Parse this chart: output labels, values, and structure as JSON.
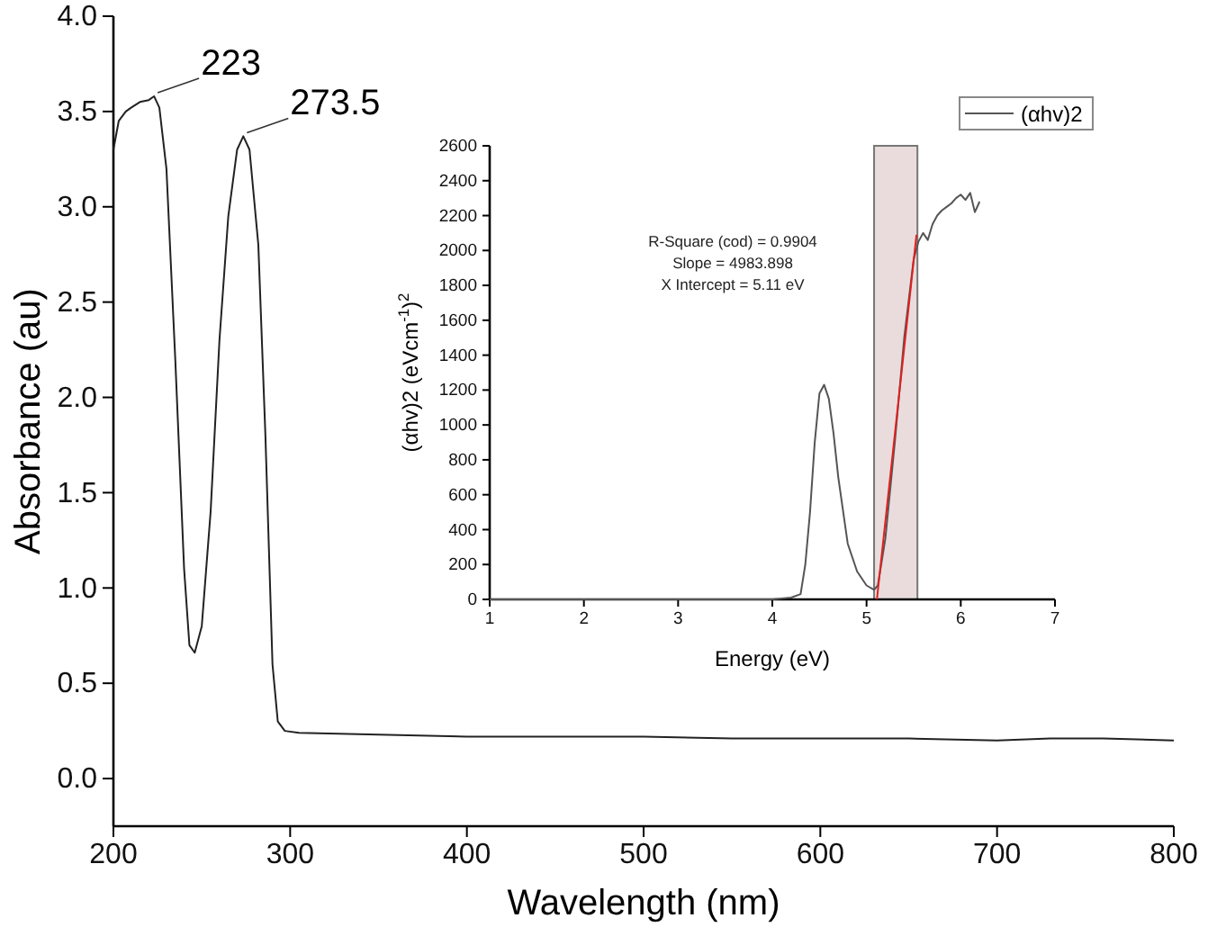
{
  "chart_data": [
    {
      "type": "line",
      "xlabel": "Wavelength (nm)",
      "ylabel": "Absorbance (au)",
      "xlim": [
        200,
        800
      ],
      "ylim": [
        -0.25,
        4.0
      ],
      "xticks": [
        200,
        300,
        400,
        500,
        600,
        700,
        800
      ],
      "yticks": [
        {
          "value": 0,
          "label": "0.0"
        },
        0.5,
        {
          "value": 1,
          "label": "1.0"
        },
        1.5,
        {
          "value": 2,
          "label": "2.0"
        },
        2.5,
        {
          "value": 3,
          "label": "3.0"
        },
        3.5,
        {
          "value": 4,
          "label": "4.0"
        }
      ],
      "grid": false,
      "legend": false,
      "series": [
        {
          "color": "#222222",
          "x": [
            200,
            203,
            207,
            210,
            215,
            220,
            223,
            226,
            230,
            235,
            240,
            243,
            246,
            250,
            255,
            260,
            265,
            270,
            273.5,
            277,
            282,
            286,
            290,
            293,
            297,
            305,
            350,
            400,
            500,
            550,
            600,
            650,
            700,
            730,
            760,
            800
          ],
          "values": [
            3.3,
            3.45,
            3.5,
            3.52,
            3.55,
            3.56,
            3.58,
            3.52,
            3.2,
            2.2,
            1.1,
            0.7,
            0.66,
            0.8,
            1.4,
            2.3,
            2.95,
            3.3,
            3.37,
            3.3,
            2.8,
            1.8,
            0.6,
            0.3,
            0.25,
            0.24,
            0.23,
            0.22,
            0.22,
            0.21,
            0.21,
            0.21,
            0.2,
            0.21,
            0.21,
            0.2
          ]
        }
      ],
      "annotations": [
        {
          "text": "223",
          "x": 223,
          "y": 3.58
        },
        {
          "text": "273.5",
          "x": 273.5,
          "y": 3.37
        }
      ]
    },
    {
      "type": "line",
      "xlabel": "Energy (eV)",
      "ylabel": "(αhv)2 (eVcm$^{-1}$)$^{2}$",
      "xlim": [
        1,
        7
      ],
      "ylim": [
        0,
        2600
      ],
      "xticks": [
        1,
        2,
        3,
        4,
        5,
        6,
        7
      ],
      "yticks": [
        0,
        200,
        400,
        600,
        800,
        1000,
        1200,
        1400,
        1600,
        1800,
        2000,
        2200,
        2400,
        2600
      ],
      "grid": false,
      "legend": "top right",
      "series": [
        {
          "name": "(αhv)2",
          "color": "#555555",
          "x": [
            1,
            2,
            3,
            4,
            4.2,
            4.3,
            4.35,
            4.4,
            4.45,
            4.5,
            4.55,
            4.6,
            4.65,
            4.7,
            4.8,
            4.9,
            5.0,
            5.08,
            5.12,
            5.2,
            5.3,
            5.4,
            5.5,
            5.55,
            5.6,
            5.65,
            5.7,
            5.75,
            5.8,
            5.85,
            5.9,
            5.95,
            6.0,
            6.05,
            6.1,
            6.15,
            6.2
          ],
          "values": [
            0,
            0,
            0,
            0,
            10,
            30,
            200,
            500,
            900,
            1180,
            1230,
            1150,
            950,
            700,
            320,
            160,
            80,
            55,
            80,
            350,
            900,
            1500,
            1950,
            2050,
            2100,
            2060,
            2150,
            2200,
            2230,
            2250,
            2270,
            2300,
            2320,
            2290,
            2330,
            2220,
            2280
          ]
        },
        {
          "type": "line",
          "color": "#e02020",
          "x": [
            5.11,
            5.53
          ],
          "values": [
            0,
            2090
          ]
        }
      ],
      "bands": [
        {
          "axis": "x",
          "from": 5.08,
          "to": 5.54,
          "color": "#eadcdc"
        }
      ],
      "annotations": [
        "R-Square (cod) = 0.9904",
        "Slope = 4983.898",
        "X Intercept = 5.11 eV"
      ]
    }
  ]
}
